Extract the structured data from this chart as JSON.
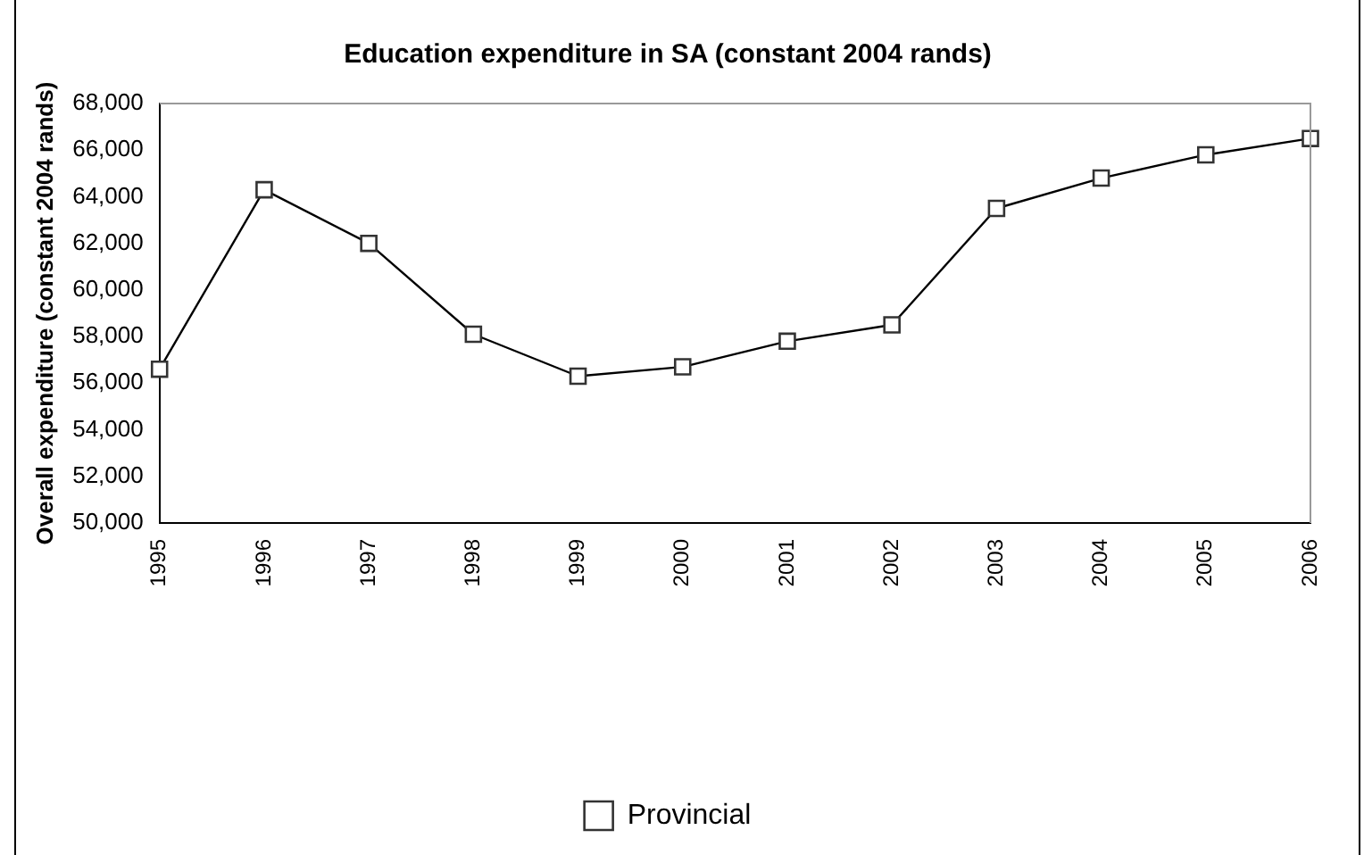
{
  "chart_data": {
    "type": "line",
    "title": "Education expenditure in SA (constant 2004 rands)",
    "ylabel": "Overall expenditure (constant 2004 rands)",
    "categories": [
      "1995",
      "1996",
      "1997",
      "1998",
      "1999",
      "2000",
      "2001",
      "2002",
      "2003",
      "2004",
      "2005",
      "2006"
    ],
    "series": [
      {
        "name": "Provincial",
        "color": "#000000",
        "values": [
          56600,
          64300,
          62000,
          58100,
          56300,
          56700,
          57800,
          58500,
          63500,
          64800,
          65800,
          66500
        ]
      }
    ],
    "ylim": [
      50000,
      68000
    ],
    "yticks": [
      {
        "value": 50000,
        "label": "50,000"
      },
      {
        "value": 52000,
        "label": "52,000"
      },
      {
        "value": 54000,
        "label": "54,000"
      },
      {
        "value": 56000,
        "label": "56,000"
      },
      {
        "value": 58000,
        "label": "58,000"
      },
      {
        "value": 60000,
        "label": "60,000"
      },
      {
        "value": 62000,
        "label": "62,000"
      },
      {
        "value": 64000,
        "label": "64,000"
      },
      {
        "value": 66000,
        "label": "66,000"
      },
      {
        "value": 68000,
        "label": "68,000"
      }
    ],
    "grid": false,
    "legend": "bottom",
    "marker": "square",
    "line_style": "solid"
  }
}
